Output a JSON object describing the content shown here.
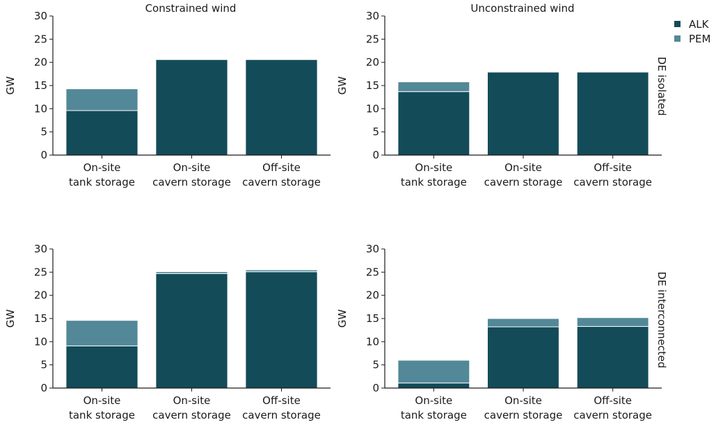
{
  "colors": {
    "ALK": "#134b59",
    "PEM": "#538898"
  },
  "legend": [
    {
      "name": "ALK",
      "color": "#134b59"
    },
    {
      "name": "PEM",
      "color": "#538898"
    }
  ],
  "row_labels": [
    "DE isolated",
    "DE interconnected"
  ],
  "column_titles": [
    "Constrained wind",
    "Unconstrained wind"
  ],
  "chart_data": [
    {
      "type": "bar",
      "stacked": true,
      "title": "Constrained wind",
      "row": "DE isolated",
      "categories": [
        "On-site\ntank storage",
        "On-site\ncavern storage",
        "Off-site\ncavern storage"
      ],
      "series": [
        {
          "name": "ALK",
          "values": [
            9.6,
            20.6,
            20.6
          ]
        },
        {
          "name": "PEM",
          "values": [
            4.7,
            0,
            0
          ]
        }
      ],
      "ylabel": "GW",
      "ylim": [
        0,
        30
      ],
      "yticks": [
        0,
        5,
        10,
        15,
        20,
        25,
        30
      ]
    },
    {
      "type": "bar",
      "stacked": true,
      "title": "Unconstrained wind",
      "row": "DE isolated",
      "categories": [
        "On-site\ntank storage",
        "On-site\ncavern storage",
        "Off-site\ncavern storage"
      ],
      "series": [
        {
          "name": "ALK",
          "values": [
            13.7,
            17.9,
            17.9
          ]
        },
        {
          "name": "PEM",
          "values": [
            2.1,
            0,
            0
          ]
        }
      ],
      "ylabel": "GW",
      "ylim": [
        0,
        30
      ],
      "yticks": [
        0,
        5,
        10,
        15,
        20,
        25,
        30
      ]
    },
    {
      "type": "bar",
      "stacked": true,
      "title": "",
      "row": "DE interconnected",
      "categories": [
        "On-site\ntank storage",
        "On-site\ncavern storage",
        "Off-site\ncavern storage"
      ],
      "series": [
        {
          "name": "ALK",
          "values": [
            9.1,
            24.7,
            25.1
          ]
        },
        {
          "name": "PEM",
          "values": [
            5.5,
            0.4,
            0.4
          ]
        }
      ],
      "ylabel": "GW",
      "ylim": [
        0,
        30
      ],
      "yticks": [
        0,
        5,
        10,
        15,
        20,
        25,
        30
      ]
    },
    {
      "type": "bar",
      "stacked": true,
      "title": "",
      "row": "DE interconnected",
      "categories": [
        "On-site\ntank storage",
        "On-site\ncavern storage",
        "Off-site\ncavern storage"
      ],
      "series": [
        {
          "name": "ALK",
          "values": [
            1.1,
            13.2,
            13.3
          ]
        },
        {
          "name": "PEM",
          "values": [
            4.9,
            1.8,
            1.9
          ]
        }
      ],
      "ylabel": "GW",
      "ylim": [
        0,
        30
      ],
      "yticks": [
        0,
        5,
        10,
        15,
        20,
        25,
        30
      ]
    }
  ]
}
